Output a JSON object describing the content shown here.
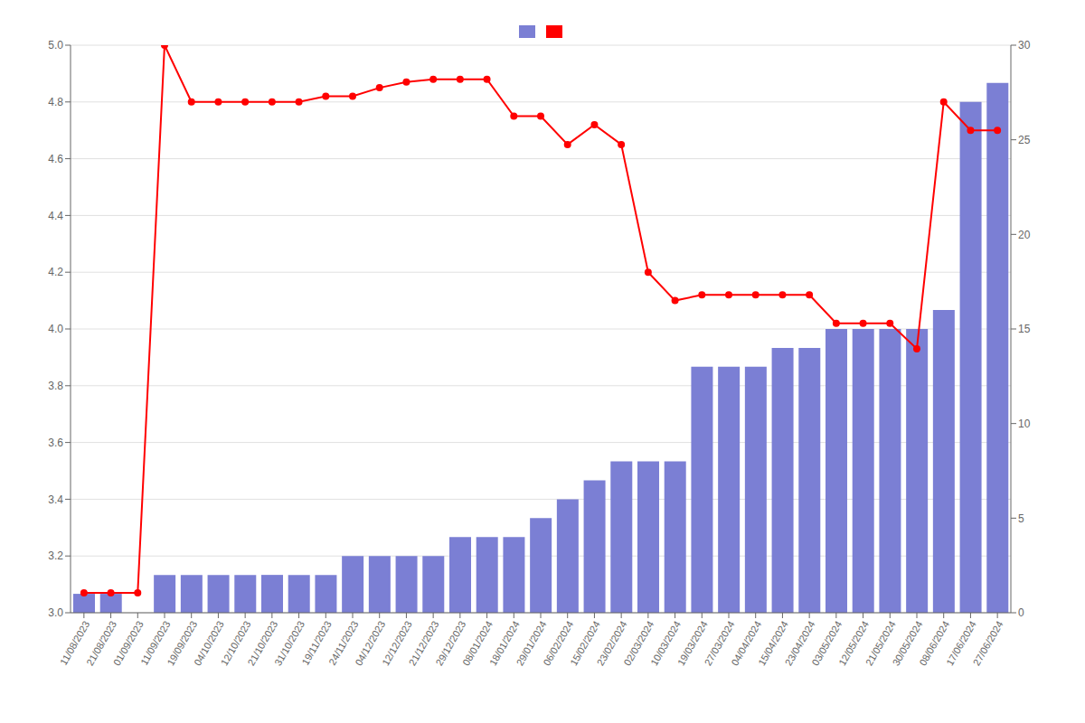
{
  "chart_data": {
    "type": "bar",
    "categories": [
      "11/08/2023",
      "21/08/2023",
      "01/09/2023",
      "11/09/2023",
      "19/09/2023",
      "04/10/2023",
      "12/10/2023",
      "21/10/2023",
      "31/10/2023",
      "19/11/2023",
      "24/11/2023",
      "04/12/2023",
      "12/12/2023",
      "21/12/2023",
      "29/12/2023",
      "08/01/2024",
      "18/01/2024",
      "29/01/2024",
      "06/02/2024",
      "15/02/2024",
      "23/02/2024",
      "02/03/2024",
      "10/03/2024",
      "19/03/2024",
      "27/03/2024",
      "04/04/2024",
      "15/04/2024",
      "23/04/2024",
      "03/05/2024",
      "12/05/2024",
      "21/05/2024",
      "30/05/2024",
      "08/06/2024",
      "17/06/2024",
      "27/06/2024"
    ],
    "series": [
      {
        "type": "bar",
        "axis": "y2",
        "color": "#7b7fd4",
        "values": [
          1,
          1,
          0,
          2,
          2,
          2,
          2,
          2,
          2,
          2,
          3,
          3,
          3,
          3,
          4,
          4,
          4,
          5,
          6,
          7,
          8,
          8,
          8,
          13,
          13,
          13,
          14,
          14,
          15,
          15,
          15,
          15,
          16,
          27,
          28
        ]
      },
      {
        "type": "line",
        "color": "#ff0000",
        "marker": "o",
        "values": [
          3.07,
          3.07,
          3.07,
          5.0,
          4.8,
          4.8,
          4.8,
          4.8,
          4.8,
          4.82,
          4.82,
          4.85,
          4.87,
          4.88,
          4.88,
          4.88,
          4.75,
          4.75,
          4.65,
          4.72,
          4.65,
          4.2,
          4.1,
          4.12,
          4.12,
          4.12,
          4.12,
          4.12,
          4.02,
          4.02,
          4.02,
          3.93,
          4.8,
          4.7,
          4.7
        ]
      }
    ],
    "ylim": [
      3.0,
      5.0
    ],
    "yticks": [
      {
        "value": 3.0,
        "label": "3.0"
      },
      3.2,
      3.4,
      3.6,
      3.8,
      {
        "value": 4.0,
        "label": "4.0"
      },
      4.2,
      4.4,
      4.6,
      4.8,
      {
        "value": 5.0,
        "label": "5.0"
      }
    ],
    "y2lim": [
      0,
      30
    ],
    "y2ticks": [
      0,
      5,
      10,
      15,
      20,
      25,
      30
    ],
    "grid": true,
    "legend": "top"
  }
}
